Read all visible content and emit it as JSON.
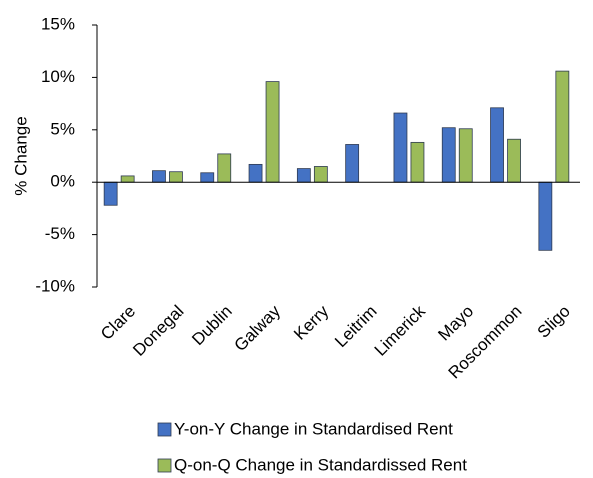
{
  "chart_data": {
    "type": "bar",
    "ylabel": "% Change",
    "categories": [
      "Clare",
      "Donegal",
      "Dublin",
      "Galway",
      "Kerry",
      "Leitrim",
      "Limerick",
      "Mayo",
      "Roscommon",
      "Sligo"
    ],
    "series": [
      {
        "name": "Y-on-Y Change in Standardised Rent",
        "color": "#4472c4",
        "values": [
          -2.2,
          1.1,
          0.9,
          1.7,
          1.3,
          3.6,
          6.6,
          5.2,
          7.1,
          -6.5
        ]
      },
      {
        "name": "Q-on-Q Change in Standardissed Rent",
        "color": "#9bbb59",
        "values": [
          0.6,
          1.0,
          2.7,
          9.6,
          1.5,
          null,
          3.8,
          5.1,
          4.1,
          10.6
        ]
      }
    ],
    "ylim": [
      -10,
      15
    ],
    "yticks": [
      {
        "value": -10,
        "label": "-10%"
      },
      {
        "value": -5,
        "label": "-5%"
      },
      {
        "value": 0,
        "label": "0%"
      },
      {
        "value": 5,
        "label": "5%"
      },
      {
        "value": 10,
        "label": "10%"
      },
      {
        "value": 15,
        "label": "15%"
      }
    ],
    "grid": false
  }
}
